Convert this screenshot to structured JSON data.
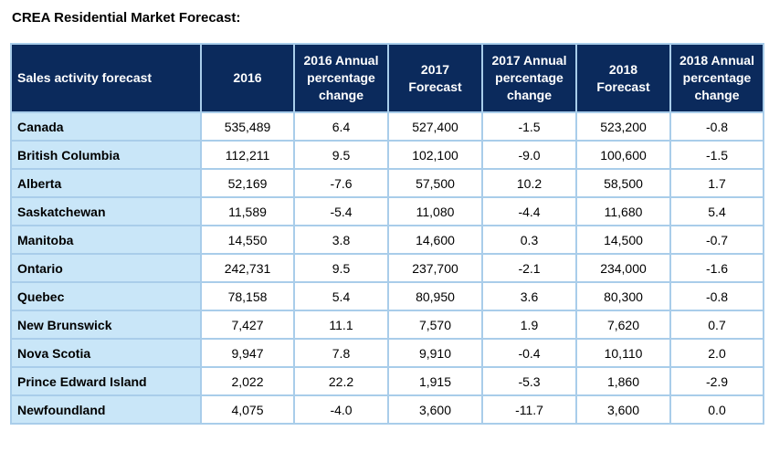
{
  "title": "CREA Residential Market Forecast:",
  "chart_data": {
    "type": "table",
    "columns": [
      "Sales activity forecast",
      "2016",
      "2016 Annual\npercentage\nchange",
      "2017\nForecast",
      "2017 Annual\npercentage\nchange",
      "2018\nForecast",
      "2018 Annual\npercentage\nchange"
    ],
    "rows": [
      [
        "Canada",
        "535,489",
        "6.4",
        "527,400",
        "-1.5",
        "523,200",
        "-0.8"
      ],
      [
        "British Columbia",
        "112,211",
        "9.5",
        "102,100",
        "-9.0",
        "100,600",
        "-1.5"
      ],
      [
        "Alberta",
        "52,169",
        "-7.6",
        "57,500",
        "10.2",
        "58,500",
        "1.7"
      ],
      [
        "Saskatchewan",
        "11,589",
        "-5.4",
        "11,080",
        "-4.4",
        "11,680",
        "5.4"
      ],
      [
        "Manitoba",
        "14,550",
        "3.8",
        "14,600",
        "0.3",
        "14,500",
        "-0.7"
      ],
      [
        "Ontario",
        "242,731",
        "9.5",
        "237,700",
        "-2.1",
        "234,000",
        "-1.6"
      ],
      [
        "Quebec",
        "78,158",
        "5.4",
        "80,950",
        "3.6",
        "80,300",
        "-0.8"
      ],
      [
        "New Brunswick",
        "7,427",
        "11.1",
        "7,570",
        "1.9",
        "7,620",
        "0.7"
      ],
      [
        "Nova Scotia",
        "9,947",
        "7.8",
        "9,910",
        "-0.4",
        "10,110",
        "2.0"
      ],
      [
        "Prince Edward Island",
        "2,022",
        "22.2",
        "1,915",
        "-5.3",
        "1,860",
        "-2.9"
      ],
      [
        "Newfoundland",
        "4,075",
        "-4.0",
        "3,600",
        "-11.7",
        "3,600",
        "0.0"
      ]
    ]
  },
  "colors": {
    "header_bg": "#0b2a5c",
    "header_text": "#ffffff",
    "region_bg": "#c9e6f8",
    "grid": "#a9cdea"
  }
}
